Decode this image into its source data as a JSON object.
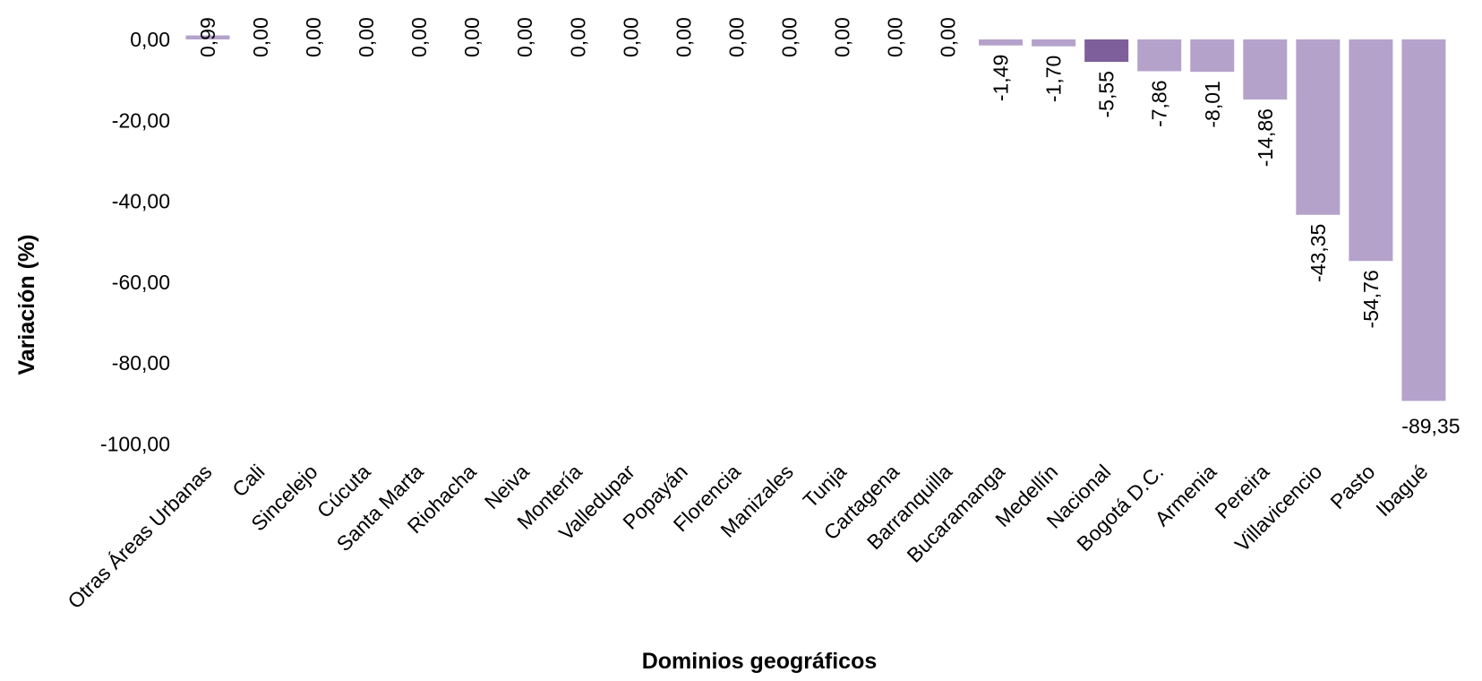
{
  "chart_data": {
    "type": "bar",
    "title": "",
    "xlabel": "Dominios geográficos",
    "ylabel": "Variación (%)",
    "ylim": [
      -100,
      0
    ],
    "yticks": [
      "0,00",
      "-20,00",
      "-40,00",
      "-60,00",
      "-80,00",
      "-100,00"
    ],
    "ytick_values": [
      0,
      -20,
      -40,
      -60,
      -80,
      -100
    ],
    "grid": false,
    "legend": "none",
    "colors": {
      "bar": "#b4a2cb",
      "highlight": "#7f5f9b"
    },
    "highlight_category": "Nacional",
    "categories": [
      "Otras Áreas Urbanas",
      "Cali",
      "Sincelejo",
      "Cúcuta",
      "Santa Marta",
      "Riohacha",
      "Neiva",
      "Montería",
      "Valledupar",
      "Popayán",
      "Florencia",
      "Manizales",
      "Tunja",
      "Cartagena",
      "Barranquilla",
      "Bucaramanga",
      "Medellín",
      "Nacional",
      "Bogotá D.C.",
      "Armenia",
      "Pereira",
      "Villavicencio",
      "Pasto",
      "Ibagué"
    ],
    "values": [
      0.99,
      0,
      0,
      0,
      0,
      0,
      0,
      0,
      0,
      0,
      0,
      0,
      0,
      0,
      0,
      -1.49,
      -1.7,
      -5.55,
      -7.86,
      -8.01,
      -14.86,
      -43.35,
      -54.76,
      -89.35
    ],
    "data_labels": [
      "0,99",
      "0,00",
      "0,00",
      "0,00",
      "0,00",
      "0,00",
      "0,00",
      "0,00",
      "0,00",
      "0,00",
      "0,00",
      "0,00",
      "0,00",
      "0,00",
      "0,00",
      "-1,49",
      "-1,70",
      "-5,55",
      "-7,86",
      "-8,01",
      "-14,86",
      "-43,35",
      "-54,76",
      "-89,35"
    ]
  }
}
